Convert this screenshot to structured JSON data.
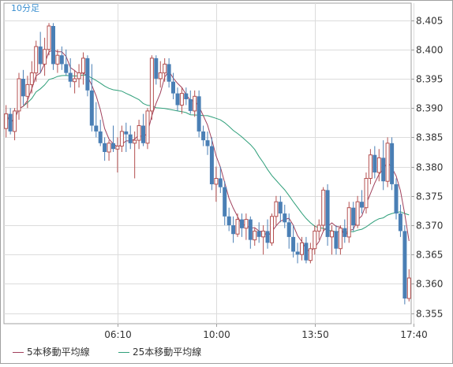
{
  "chart_data": {
    "type": "candlestick",
    "title": "10分足",
    "y_ticks": [
      "8.405",
      "8.400",
      "8.395",
      "8.390",
      "8.385",
      "8.380",
      "8.375",
      "8.370",
      "8.365",
      "8.360",
      "8.355"
    ],
    "ylim": [
      8.3532,
      8.4079
    ],
    "x_ticks": [
      {
        "label": "06:10",
        "index": 26
      },
      {
        "label": "10:00",
        "index": 49
      },
      {
        "label": "13:50",
        "index": 72
      },
      {
        "label": "17:40",
        "index": 95
      }
    ],
    "grid": true,
    "legend_placement": "bottom",
    "colors": {
      "up": "#b45050",
      "down": "#4a7fb5",
      "ma5": "#a0405c",
      "ma25": "#2f9f7a",
      "grid": "#dcdcdc",
      "axis": "#a0a0a0",
      "title": "#3a8fd0"
    },
    "series": [
      {
        "name": "5本移動平均線",
        "kind": "ma5"
      },
      {
        "name": "25本移動平均線",
        "kind": "ma25"
      }
    ],
    "candles": [
      [
        8.3865,
        8.3905,
        8.385,
        8.389
      ],
      [
        8.389,
        8.39,
        8.3855,
        8.386
      ],
      [
        8.386,
        8.39,
        8.3845,
        8.3895
      ],
      [
        8.3895,
        8.396,
        8.388,
        8.395
      ],
      [
        8.395,
        8.3965,
        8.3905,
        8.392
      ],
      [
        8.392,
        8.3955,
        8.39,
        8.394
      ],
      [
        8.394,
        8.398,
        8.3925,
        8.396
      ],
      [
        8.396,
        8.4015,
        8.3945,
        8.4005
      ],
      [
        8.4005,
        8.403,
        8.396,
        8.3975
      ],
      [
        8.3975,
        8.402,
        8.3955,
        8.4
      ],
      [
        8.4,
        8.4045,
        8.399,
        8.404
      ],
      [
        8.404,
        8.4045,
        8.3965,
        8.3975
      ],
      [
        8.3975,
        8.4,
        8.396,
        8.399
      ],
      [
        8.399,
        8.4005,
        8.3965,
        8.3975
      ],
      [
        8.3975,
        8.4,
        8.3955,
        8.396
      ],
      [
        8.396,
        8.3985,
        8.3935,
        8.3945
      ],
      [
        8.3945,
        8.3965,
        8.3925,
        8.395
      ],
      [
        8.395,
        8.3975,
        8.3935,
        8.396
      ],
      [
        8.396,
        8.3995,
        8.394,
        8.3985
      ],
      [
        8.3985,
        8.399,
        8.392,
        8.393
      ],
      [
        8.393,
        8.3975,
        8.386,
        8.387
      ],
      [
        8.387,
        8.391,
        8.385,
        8.386
      ],
      [
        8.386,
        8.388,
        8.3835,
        8.384
      ],
      [
        8.384,
        8.385,
        8.381,
        8.3825
      ],
      [
        8.3825,
        8.3845,
        8.381,
        8.384
      ],
      [
        8.384,
        8.387,
        8.3825,
        8.383
      ],
      [
        8.383,
        8.385,
        8.379,
        8.3835
      ],
      [
        8.3835,
        8.387,
        8.3825,
        8.386
      ],
      [
        8.386,
        8.3875,
        8.3825,
        8.3855
      ],
      [
        8.3855,
        8.387,
        8.383,
        8.384
      ],
      [
        8.384,
        8.386,
        8.378,
        8.3845
      ],
      [
        8.3845,
        8.388,
        8.383,
        8.387
      ],
      [
        8.387,
        8.389,
        8.3835,
        8.384
      ],
      [
        8.384,
        8.39,
        8.383,
        8.3895
      ],
      [
        8.3895,
        8.399,
        8.388,
        8.3985
      ],
      [
        8.3985,
        8.399,
        8.394,
        8.395
      ],
      [
        8.395,
        8.398,
        8.3935,
        8.396
      ],
      [
        8.396,
        8.3985,
        8.3945,
        8.3975
      ],
      [
        8.3975,
        8.3985,
        8.3935,
        8.3945
      ],
      [
        8.3945,
        8.396,
        8.3915,
        8.3925
      ],
      [
        8.3925,
        8.3935,
        8.3895,
        8.3905
      ],
      [
        8.3905,
        8.3935,
        8.389,
        8.3925
      ],
      [
        8.3925,
        8.3935,
        8.3905,
        8.3915
      ],
      [
        8.3915,
        8.393,
        8.389,
        8.3895
      ],
      [
        8.3895,
        8.393,
        8.3885,
        8.392
      ],
      [
        8.392,
        8.393,
        8.385,
        8.386
      ],
      [
        8.386,
        8.387,
        8.3835,
        8.3845
      ],
      [
        8.3845,
        8.386,
        8.382,
        8.3835
      ],
      [
        8.3835,
        8.385,
        8.376,
        8.377
      ],
      [
        8.377,
        8.38,
        8.374,
        8.378
      ],
      [
        8.378,
        8.38,
        8.3755,
        8.3765
      ],
      [
        8.3765,
        8.3775,
        8.37,
        8.3715
      ],
      [
        8.3715,
        8.373,
        8.369,
        8.37
      ],
      [
        8.37,
        8.3715,
        8.367,
        8.3685
      ],
      [
        8.3685,
        8.372,
        8.368,
        8.371
      ],
      [
        8.371,
        8.372,
        8.368,
        8.3695
      ],
      [
        8.3695,
        8.372,
        8.3675,
        8.371
      ],
      [
        8.371,
        8.3715,
        8.366,
        8.3675
      ],
      [
        8.3675,
        8.3695,
        8.3665,
        8.369
      ],
      [
        8.369,
        8.3705,
        8.367,
        8.368
      ],
      [
        8.368,
        8.37,
        8.365,
        8.369
      ],
      [
        8.369,
        8.371,
        8.366,
        8.367
      ],
      [
        8.367,
        8.372,
        8.3665,
        8.3715
      ],
      [
        8.3715,
        8.375,
        8.37,
        8.374
      ],
      [
        8.374,
        8.375,
        8.3705,
        8.372
      ],
      [
        8.372,
        8.3735,
        8.3695,
        8.3705
      ],
      [
        8.3705,
        8.372,
        8.366,
        8.368
      ],
      [
        8.368,
        8.37,
        8.3645,
        8.3655
      ],
      [
        8.3655,
        8.367,
        8.3635,
        8.365
      ],
      [
        8.365,
        8.368,
        8.364,
        8.367
      ],
      [
        8.367,
        8.368,
        8.3635,
        8.364
      ],
      [
        8.364,
        8.367,
        8.3635,
        8.366
      ],
      [
        8.366,
        8.37,
        8.365,
        8.369
      ],
      [
        8.369,
        8.371,
        8.3675,
        8.37
      ],
      [
        8.37,
        8.3765,
        8.369,
        8.376
      ],
      [
        8.376,
        8.377,
        8.3665,
        8.368
      ],
      [
        8.368,
        8.37,
        8.365,
        8.369
      ],
      [
        8.369,
        8.37,
        8.365,
        8.366
      ],
      [
        8.366,
        8.37,
        8.365,
        8.3695
      ],
      [
        8.3695,
        8.371,
        8.367,
        8.368
      ],
      [
        8.368,
        8.374,
        8.367,
        8.373
      ],
      [
        8.373,
        8.374,
        8.369,
        8.37
      ],
      [
        8.37,
        8.375,
        8.3695,
        8.374
      ],
      [
        8.374,
        8.376,
        8.372,
        8.373
      ],
      [
        8.373,
        8.379,
        8.372,
        8.378
      ],
      [
        8.378,
        8.383,
        8.377,
        8.382
      ],
      [
        8.382,
        8.3835,
        8.378,
        8.379
      ],
      [
        8.379,
        8.383,
        8.3775,
        8.3815
      ],
      [
        8.3815,
        8.3845,
        8.376,
        8.3775
      ],
      [
        8.3775,
        8.385,
        8.3765,
        8.384
      ],
      [
        8.384,
        8.385,
        8.376,
        8.377
      ],
      [
        8.377,
        8.378,
        8.371,
        8.372
      ],
      [
        8.372,
        8.3735,
        8.368,
        8.369
      ],
      [
        8.369,
        8.37,
        8.3565,
        8.3575
      ],
      [
        8.3575,
        8.3625,
        8.357,
        8.361
      ]
    ]
  }
}
